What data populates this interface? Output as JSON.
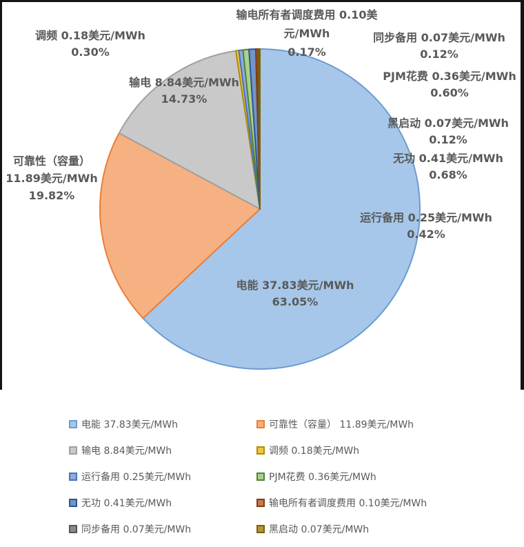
{
  "chart_data": {
    "type": "pie",
    "unit": "美元/MWh",
    "legend_position": "bottom",
    "series": [
      {
        "name": "电能",
        "value": 37.83,
        "pct": 63.05,
        "fill": "#A6C7E9",
        "stroke": "#6B9BD2",
        "label_lines": [
          "电能 37.83美元/MWh",
          "63.05%"
        ]
      },
      {
        "name": "可靠性（容量）",
        "value": 11.89,
        "pct": 19.82,
        "fill": "#F6B183",
        "stroke": "#ED7D31",
        "label_lines": [
          "可靠性（容量）",
          "11.89美元/MWh",
          "19.82%"
        ]
      },
      {
        "name": "输电",
        "value": 8.84,
        "pct": 14.73,
        "fill": "#C9C9C9",
        "stroke": "#A0A0A0",
        "label_lines": [
          "输电 8.84美元/MWh",
          "14.73%"
        ]
      },
      {
        "name": "调频",
        "value": 0.18,
        "pct": 0.3,
        "fill": "#EFC544",
        "stroke": "#B08C00",
        "label_lines": [
          "调频 0.18美元/MWh",
          "0.30%"
        ]
      },
      {
        "name": "运行备用",
        "value": 0.25,
        "pct": 0.42,
        "fill": "#8FAADC",
        "stroke": "#4472C4",
        "label_lines": [
          "运行备用 0.25美元/MWh",
          "0.42%"
        ]
      },
      {
        "name": "PJM花费",
        "value": 0.36,
        "pct": 0.6,
        "fill": "#A9D18E",
        "stroke": "#548235",
        "label_lines": [
          "PJM花费 0.36美元/MWh",
          "0.60%"
        ]
      },
      {
        "name": "无功",
        "value": 0.41,
        "pct": 0.68,
        "fill": "#7295C7",
        "stroke": "#2E5597",
        "label_lines": [
          "无功 0.41美元/MWh",
          "0.68%"
        ]
      },
      {
        "name": "输电所有者调度费用",
        "value": 0.1,
        "pct": 0.17,
        "fill": "#C27A58",
        "stroke": "#843C0C",
        "label_lines": [
          "输电所有者调度费用 0.10美",
          "元/MWh",
          "0.17%"
        ]
      },
      {
        "name": "同步备用",
        "value": 0.07,
        "pct": 0.12,
        "fill": "#8C8C8C",
        "stroke": "#555555",
        "label_lines": [
          "同步备用 0.07美元/MWh",
          "0.12%"
        ]
      },
      {
        "name": "黑启动",
        "value": 0.07,
        "pct": 0.12,
        "fill": "#B2963C",
        "stroke": "#7F6000",
        "label_lines": [
          "黑启动 0.07美元/MWh",
          "0.12%"
        ]
      }
    ],
    "legend": {
      "items": [
        "电能 37.83美元/MWh",
        "可靠性（容量） 11.89美元/MWh",
        "输电 8.84美元/MWh",
        "调频 0.18美元/MWh",
        "运行备用 0.25美元/MWh",
        "PJM花费 0.36美元/MWh",
        "无功 0.41美元/MWh",
        "输电所有者调度费用 0.10美元/MWh",
        "同步备用 0.07美元/MWh",
        "黑启动 0.07美元/MWh"
      ]
    }
  }
}
